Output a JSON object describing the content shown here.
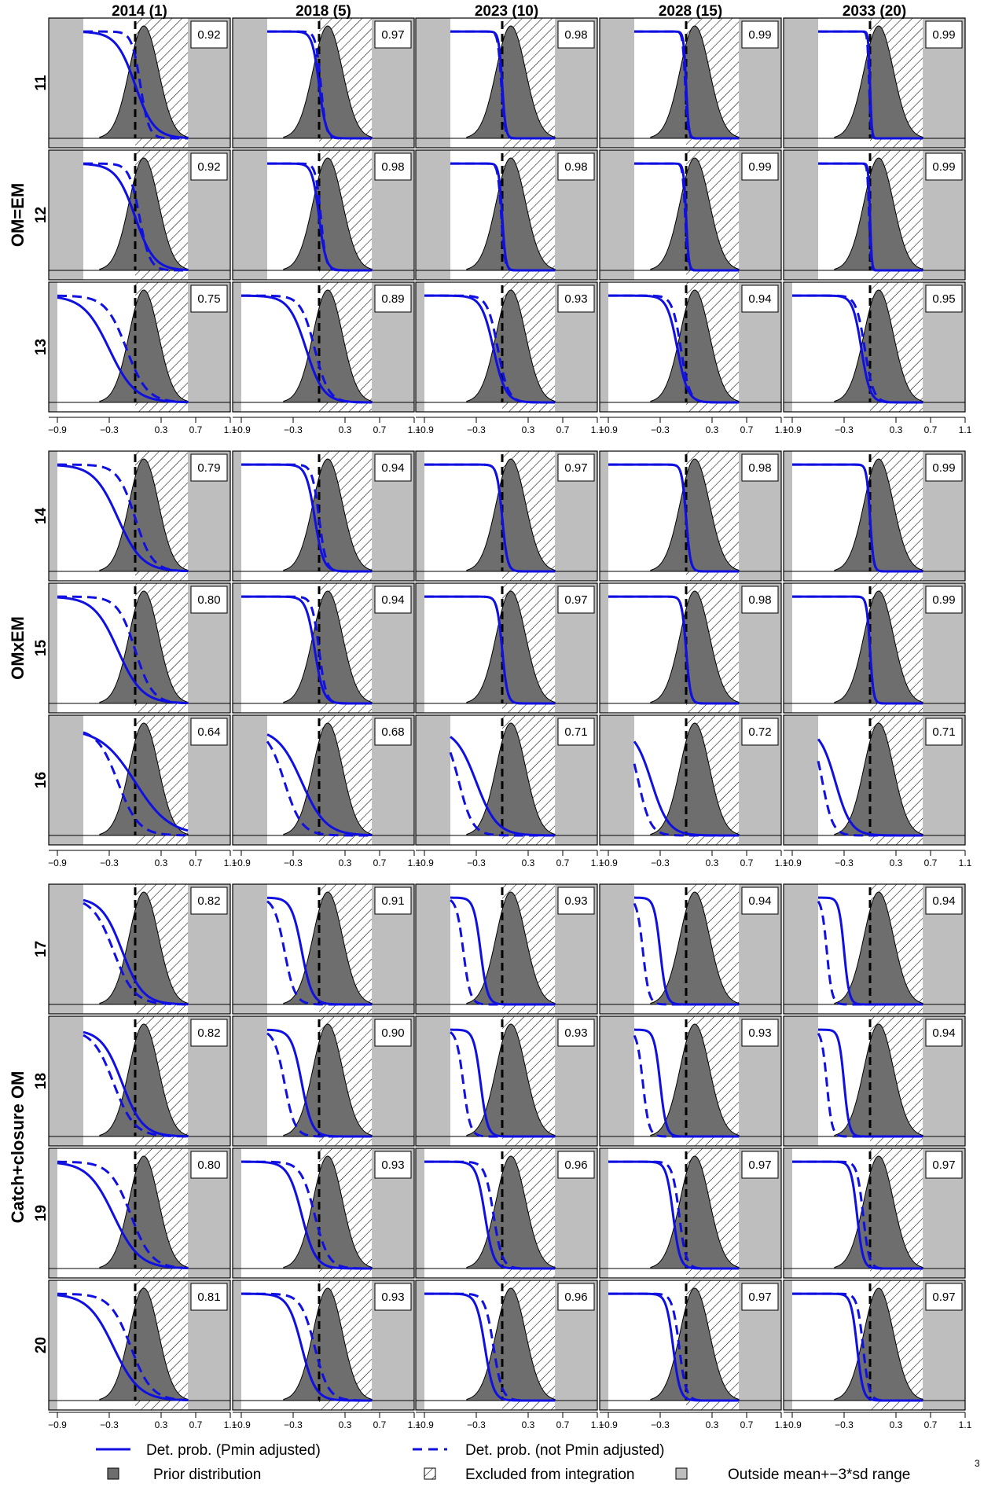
{
  "chart_data": {
    "type": "line",
    "columns": [
      "2014 (1)",
      "2018 (5)",
      "2023 (10)",
      "2028 (15)",
      "2033 (20)"
    ],
    "groups": [
      {
        "label": "OM=EM",
        "rows": [
          "11",
          "12",
          "13"
        ]
      },
      {
        "label": "OMxEM",
        "rows": [
          "14",
          "15",
          "16"
        ]
      },
      {
        "label": "Catch+closure OM",
        "rows": [
          "17",
          "18",
          "19",
          "20"
        ]
      }
    ],
    "x_ticks": [
      "−0.9",
      "−0.3",
      "0.3",
      "0.7",
      "1.1"
    ],
    "x_tick_values": [
      -0.9,
      -0.3,
      0.3,
      0.7,
      1.1
    ],
    "xlim": [
      -1.0,
      1.1
    ],
    "reference_line_x": 0.0,
    "prior": {
      "mean": 0.1,
      "sd": 0.17
    },
    "range_lo_by_row": {
      "11": -0.6,
      "12": -0.6,
      "13": -0.9,
      "14": -0.9,
      "15": -0.9,
      "16": -0.6,
      "17": -0.6,
      "18": -0.6,
      "19": -0.9,
      "20": -0.9
    },
    "exclusion_start": 0.0,
    "curve_params": {
      "11": [
        [
          0.0,
          0.11,
          0.06,
          0.05
        ],
        [
          0.0,
          0.04,
          0.02,
          0.03
        ],
        [
          0.0,
          0.02,
          -0.01,
          0.02
        ],
        [
          0.0,
          0.015,
          -0.01,
          0.015
        ],
        [
          0.0,
          0.01,
          -0.01,
          0.01
        ]
      ],
      "12": [
        [
          0.0,
          0.11,
          0.05,
          0.06
        ],
        [
          0.0,
          0.04,
          0.02,
          0.03
        ],
        [
          0.0,
          0.02,
          -0.01,
          0.02
        ],
        [
          0.0,
          0.015,
          -0.01,
          0.015
        ],
        [
          0.0,
          0.01,
          -0.01,
          0.01
        ]
      ],
      "13": [
        [
          -0.3,
          0.15,
          -0.1,
          0.12
        ],
        [
          -0.15,
          0.1,
          -0.05,
          0.08
        ],
        [
          -0.1,
          0.07,
          -0.05,
          0.06
        ],
        [
          -0.1,
          0.06,
          -0.06,
          0.05
        ],
        [
          -0.1,
          0.05,
          -0.06,
          0.05
        ]
      ],
      "14": [
        [
          -0.2,
          0.14,
          0.0,
          0.1
        ],
        [
          -0.05,
          0.05,
          0.0,
          0.04
        ],
        [
          0.0,
          0.03,
          0.0,
          0.03
        ],
        [
          0.0,
          0.025,
          0.0,
          0.025
        ],
        [
          0.0,
          0.02,
          0.0,
          0.02
        ]
      ],
      "15": [
        [
          -0.2,
          0.14,
          0.0,
          0.1
        ],
        [
          -0.05,
          0.05,
          0.0,
          0.04
        ],
        [
          0.0,
          0.03,
          0.0,
          0.03
        ],
        [
          0.0,
          0.025,
          0.0,
          0.025
        ],
        [
          0.0,
          0.02,
          0.0,
          0.02
        ]
      ],
      "16": [
        [
          0.0,
          0.2,
          -0.2,
          0.12
        ],
        [
          -0.2,
          0.14,
          -0.4,
          0.1
        ],
        [
          -0.3,
          0.12,
          -0.5,
          0.08
        ],
        [
          -0.4,
          0.1,
          -0.55,
          0.07
        ],
        [
          -0.4,
          0.09,
          -0.55,
          0.06
        ]
      ],
      "17": [
        [
          -0.15,
          0.12,
          -0.25,
          0.12
        ],
        [
          -0.2,
          0.06,
          -0.4,
          0.06
        ],
        [
          -0.25,
          0.04,
          -0.45,
          0.04
        ],
        [
          -0.3,
          0.035,
          -0.5,
          0.035
        ],
        [
          -0.3,
          0.03,
          -0.5,
          0.03
        ]
      ],
      "18": [
        [
          -0.15,
          0.12,
          -0.25,
          0.12
        ],
        [
          -0.2,
          0.06,
          -0.4,
          0.06
        ],
        [
          -0.25,
          0.04,
          -0.45,
          0.04
        ],
        [
          -0.3,
          0.035,
          -0.5,
          0.035
        ],
        [
          -0.3,
          0.03,
          -0.5,
          0.03
        ]
      ],
      "19": [
        [
          -0.25,
          0.15,
          -0.05,
          0.12
        ],
        [
          -0.2,
          0.08,
          -0.05,
          0.08
        ],
        [
          -0.2,
          0.05,
          -0.1,
          0.05
        ],
        [
          -0.15,
          0.04,
          -0.08,
          0.04
        ],
        [
          -0.15,
          0.035,
          -0.08,
          0.035
        ]
      ],
      "20": [
        [
          -0.25,
          0.15,
          -0.05,
          0.12
        ],
        [
          -0.2,
          0.08,
          -0.05,
          0.08
        ],
        [
          -0.2,
          0.05,
          -0.1,
          0.05
        ],
        [
          -0.15,
          0.04,
          -0.08,
          0.04
        ],
        [
          -0.15,
          0.035,
          -0.08,
          0.035
        ]
      ]
    },
    "probabilities": {
      "11": [
        "0.92",
        "0.97",
        "0.98",
        "0.99",
        "0.99"
      ],
      "12": [
        "0.92",
        "0.98",
        "0.98",
        "0.99",
        "0.99"
      ],
      "13": [
        "0.75",
        "0.89",
        "0.93",
        "0.94",
        "0.95"
      ],
      "14": [
        "0.79",
        "0.94",
        "0.97",
        "0.98",
        "0.99"
      ],
      "15": [
        "0.80",
        "0.94",
        "0.97",
        "0.98",
        "0.99"
      ],
      "16": [
        "0.64",
        "0.68",
        "0.71",
        "0.72",
        "0.71"
      ],
      "17": [
        "0.82",
        "0.91",
        "0.93",
        "0.94",
        "0.94"
      ],
      "18": [
        "0.82",
        "0.90",
        "0.93",
        "0.93",
        "0.94"
      ],
      "19": [
        "0.80",
        "0.93",
        "0.96",
        "0.97",
        "0.97"
      ],
      "20": [
        "0.81",
        "0.93",
        "0.96",
        "0.97",
        "0.97"
      ]
    },
    "series": [
      {
        "name": "Det. prob. (Pmin adjusted)",
        "style": "solid",
        "color": "#1010e0"
      },
      {
        "name": "Det. prob. (not Pmin adjusted)",
        "style": "dashed",
        "color": "#1010e0"
      }
    ],
    "legend": {
      "solid": "Det. prob. (Pmin adjusted)",
      "dashed": "Det. prob. (not Pmin adjusted)",
      "prior": "Prior distribution",
      "excluded": "Excluded from integration",
      "outside": "Outside mean+−3*sd range"
    },
    "page_number": "3",
    "colors": {
      "curve": "#1010e0",
      "prior_fill": "#6e6e6e",
      "outside_fill": "#bebebe",
      "frame": "#000000"
    }
  }
}
